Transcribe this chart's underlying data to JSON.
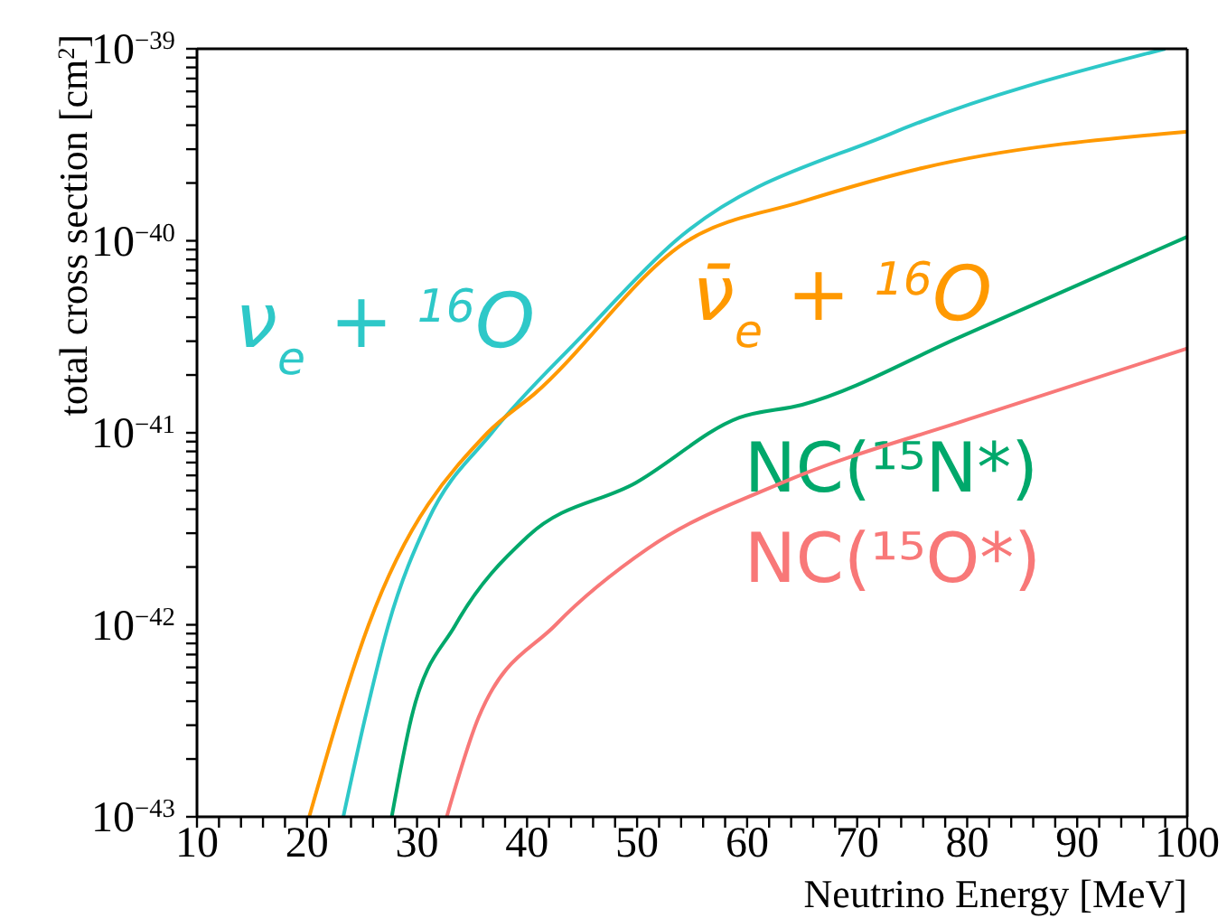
{
  "chart_data": {
    "type": "line",
    "xlabel": "Neutrino Energy [MeV]",
    "ylabel": "total cross section [cm$^{2}$]",
    "log": "y",
    "grid": false,
    "marker": "none",
    "line_style": "solid",
    "xlim": [
      10,
      100
    ],
    "ylim": [
      1e-43,
      1e-39
    ],
    "xticks": [
      10,
      {
        "value": 12,
        "label": null
      },
      {
        "value": 14,
        "label": null
      },
      {
        "value": 16,
        "label": null
      },
      {
        "value": 18,
        "label": null
      },
      20,
      {
        "value": 22,
        "label": null
      },
      {
        "value": 24,
        "label": null
      },
      {
        "value": 26,
        "label": null
      },
      {
        "value": 28,
        "label": null
      },
      30,
      {
        "value": 32,
        "label": null
      },
      {
        "value": 34,
        "label": null
      },
      {
        "value": 36,
        "label": null
      },
      {
        "value": 38,
        "label": null
      },
      40,
      {
        "value": 42,
        "label": null
      },
      {
        "value": 44,
        "label": null
      },
      {
        "value": 46,
        "label": null
      },
      {
        "value": 48,
        "label": null
      },
      50,
      {
        "value": 52,
        "label": null
      },
      {
        "value": 54,
        "label": null
      },
      {
        "value": 56,
        "label": null
      },
      {
        "value": 58,
        "label": null
      },
      60,
      {
        "value": 62,
        "label": null
      },
      {
        "value": 64,
        "label": null
      },
      {
        "value": 66,
        "label": null
      },
      {
        "value": 68,
        "label": null
      },
      70,
      {
        "value": 72,
        "label": null
      },
      {
        "value": 74,
        "label": null
      },
      {
        "value": 76,
        "label": null
      },
      {
        "value": 78,
        "label": null
      },
      80,
      {
        "value": 82,
        "label": null
      },
      {
        "value": 84,
        "label": null
      },
      {
        "value": 86,
        "label": null
      },
      {
        "value": 88,
        "label": null
      },
      90,
      {
        "value": 92,
        "label": null
      },
      {
        "value": 94,
        "label": null
      },
      {
        "value": 96,
        "label": null
      },
      {
        "value": 98,
        "label": null
      },
      100
    ],
    "yticks": [
      {
        "value": 1e-43,
        "label": "10$^{−43}$"
      },
      {
        "value": 2e-43,
        "label": null
      },
      {
        "value": 3e-43,
        "label": null
      },
      {
        "value": 4e-43,
        "label": null
      },
      {
        "value": 5e-43,
        "label": null
      },
      {
        "value": 6e-43,
        "label": null
      },
      {
        "value": 7e-43,
        "label": null
      },
      {
        "value": 8e-43,
        "label": null
      },
      {
        "value": 9e-43,
        "label": null
      },
      {
        "value": 1e-42,
        "label": "10$^{−42}$"
      },
      {
        "value": 2e-42,
        "label": null
      },
      {
        "value": 3e-42,
        "label": null
      },
      {
        "value": 4e-42,
        "label": null
      },
      {
        "value": 5e-42,
        "label": null
      },
      {
        "value": 6e-42,
        "label": null
      },
      {
        "value": 7e-42,
        "label": null
      },
      {
        "value": 8e-42,
        "label": null
      },
      {
        "value": 9e-42,
        "label": null
      },
      {
        "value": 1e-41,
        "label": "10$^{−41}$"
      },
      {
        "value": 2e-41,
        "label": null
      },
      {
        "value": 3e-41,
        "label": null
      },
      {
        "value": 4e-41,
        "label": null
      },
      {
        "value": 5e-41,
        "label": null
      },
      {
        "value": 6e-41,
        "label": null
      },
      {
        "value": 7e-41,
        "label": null
      },
      {
        "value": 8e-41,
        "label": null
      },
      {
        "value": 9e-41,
        "label": null
      },
      {
        "value": 1e-40,
        "label": "10$^{−40}$"
      },
      {
        "value": 2e-40,
        "label": null
      },
      {
        "value": 3e-40,
        "label": null
      },
      {
        "value": 4e-40,
        "label": null
      },
      {
        "value": 5e-40,
        "label": null
      },
      {
        "value": 6e-40,
        "label": null
      },
      {
        "value": 7e-40,
        "label": null
      },
      {
        "value": 8e-40,
        "label": null
      },
      {
        "value": 9e-40,
        "label": null
      },
      {
        "value": 1e-39,
        "label": "10$^{−39}$"
      }
    ],
    "series": [
      {
        "name": "ν$_{e}$ + $^{16}$O",
        "color": "#2ec8c8",
        "x": [
          23.3,
          25.3,
          27.4,
          31,
          36.8,
          45,
          53.5,
          73,
          98
        ],
        "values": [
          1e-43,
          3.3e-43,
          1e-42,
          3.5e-42,
          1e-41,
          3.2e-41,
          1e-40,
          3.6e-40,
          1e-39
        ]
      },
      {
        "name": "ν̄$_{e}$ + $^{16}$O",
        "color": "#ff9900",
        "x": [
          20.2,
          25.6,
          36.4,
          40.7,
          54.6,
          65,
          76,
          100
        ],
        "values": [
          1e-43,
          1e-42,
          1e-41,
          1.6e-41,
          1e-40,
          1.6e-40,
          2.4e-40,
          3.7e-40
        ]
      },
      {
        "name": "NC(¹⁵N*)",
        "color": "#00a86b",
        "x": [
          27.7,
          29.5,
          33.5,
          40.1,
          49.9,
          59.3,
          65,
          79.6,
          100
        ],
        "values": [
          1e-43,
          3.3e-43,
          1e-42,
          2.9e-42,
          5.5e-42,
          1.2e-41,
          1.4e-41,
          3.2e-41,
          1.05e-40
        ]
      },
      {
        "name": "NC(¹⁵O*)",
        "color": "#f87878",
        "x": [
          32.7,
          35.6,
          42.6,
          51,
          63.2,
          80.6,
          100
        ],
        "values": [
          1e-43,
          3.3e-43,
          1e-42,
          2.5e-42,
          5.5e-42,
          1.2e-41,
          2.75e-41
        ]
      }
    ]
  }
}
